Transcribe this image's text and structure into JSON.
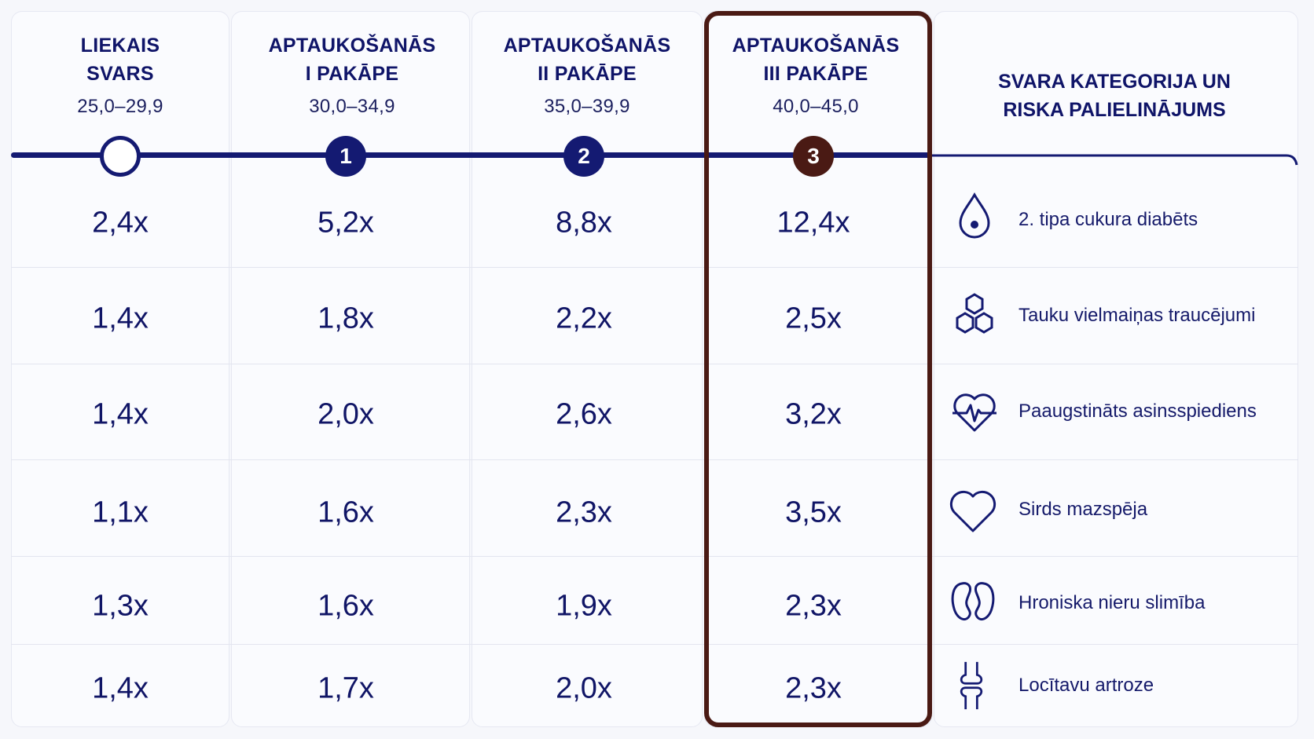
{
  "chart_data": {
    "type": "table",
    "title": "SVARA KATEGORIJA UN RISKA PALIELINĀJUMS",
    "columns": [
      {
        "name": "LIEKAIS SVARS",
        "range": "25,0–29,9",
        "marker": ""
      },
      {
        "name": "APTAUKOŠANĀS I PAKĀPE",
        "range": "30,0–34,9",
        "marker": "1"
      },
      {
        "name": "APTAUKOŠANĀS II PAKĀPE",
        "range": "35,0–39,9",
        "marker": "2"
      },
      {
        "name": "APTAUKOŠANĀS III PAKĀPE",
        "range": "40,0–45,0",
        "marker": "3"
      }
    ],
    "highlighted_column": 3,
    "rows": [
      {
        "label": "2. tipa cukura diabēts",
        "icon": "drop-icon",
        "values": [
          "2,4x",
          "5,2x",
          "8,8x",
          "12,4x"
        ]
      },
      {
        "label": "Tauku vielmaiņas traucējumi",
        "icon": "molecule-icon",
        "values": [
          "1,4x",
          "1,8x",
          "2,2x",
          "2,5x"
        ]
      },
      {
        "label": "Paaugstināts asinsspiediens",
        "icon": "heartbeat-icon",
        "values": [
          "1,4x",
          "2,0x",
          "2,6x",
          "3,2x"
        ]
      },
      {
        "label": "Sirds mazspēja",
        "icon": "heart-icon",
        "values": [
          "1,1x",
          "1,6x",
          "2,3x",
          "3,5x"
        ]
      },
      {
        "label": "Hroniska nieru slimība",
        "icon": "kidney-icon",
        "values": [
          "1,3x",
          "1,6x",
          "1,9x",
          "2,3x"
        ]
      },
      {
        "label": "Locītavu artroze",
        "icon": "joint-icon",
        "values": [
          "1,4x",
          "1,7x",
          "2,0x",
          "2,3x"
        ]
      }
    ],
    "colors": {
      "primary": "#141a72",
      "highlight": "#4a1a14",
      "background": "#f6f7fb"
    }
  }
}
